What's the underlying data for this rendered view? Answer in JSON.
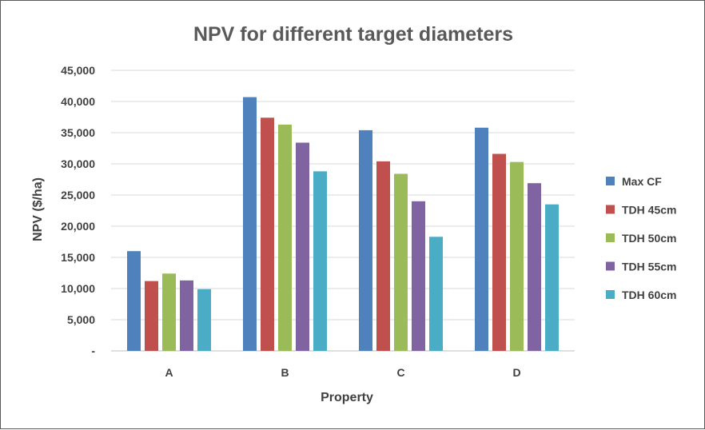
{
  "chart_data": {
    "type": "bar",
    "title": "NPV for different target diameters",
    "xlabel": "Property",
    "ylabel": "NPV  ($/ha)",
    "categories": [
      "A",
      "B",
      "C",
      "D"
    ],
    "ylim": [
      0,
      45000
    ],
    "ytick_step": 5000,
    "ytick_labels": [
      "-",
      "5,000",
      "10,000",
      "15,000",
      "20,000",
      "25,000",
      "30,000",
      "35,000",
      "40,000",
      "45,000"
    ],
    "grid": true,
    "legend_position": "right",
    "series": [
      {
        "name": "Max CF",
        "color": "#4F81BD",
        "values": [
          16000,
          40700,
          35400,
          35800
        ]
      },
      {
        "name": "TDH 45cm",
        "color": "#C0504D",
        "values": [
          11200,
          37400,
          30400,
          31600
        ]
      },
      {
        "name": "TDH 50cm",
        "color": "#9BBB59",
        "values": [
          12400,
          36300,
          28400,
          30300
        ]
      },
      {
        "name": "TDH 55cm",
        "color": "#8064A2",
        "values": [
          11300,
          33400,
          24000,
          26900
        ]
      },
      {
        "name": "TDH 60cm",
        "color": "#4BACC6",
        "values": [
          9900,
          28800,
          18300,
          23500
        ]
      }
    ]
  }
}
